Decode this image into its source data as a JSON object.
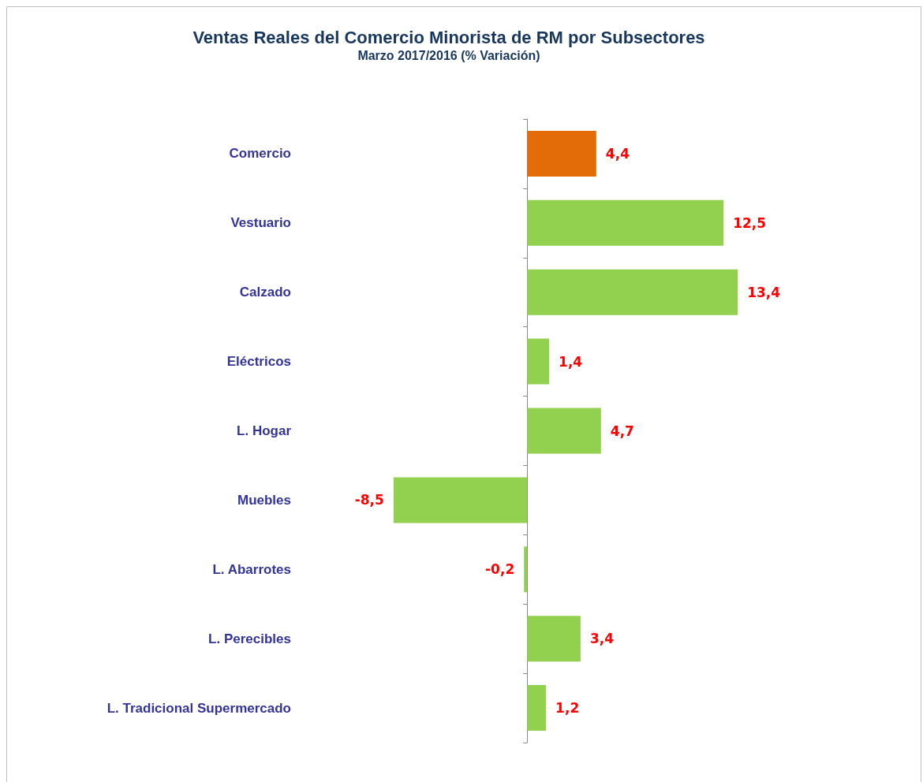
{
  "chart_data": {
    "type": "bar",
    "orientation": "horizontal",
    "title": "Ventas Reales del Comercio Minorista de RM por Subsectores",
    "subtitle": "Marzo 2017/2016 (% Variación)",
    "categories": [
      "Comercio",
      "Vestuario",
      "Calzado",
      "Eléctricos",
      "L. Hogar",
      "Muebles",
      "L. Abarrotes",
      "L. Perecibles",
      "L. Tradicional Supermercado"
    ],
    "values": [
      4.4,
      12.5,
      13.4,
      1.4,
      4.7,
      -8.5,
      -0.2,
      3.4,
      1.2
    ],
    "value_labels": [
      "4,4",
      "12,5",
      "13,4",
      "1,4",
      "4,7",
      "-8,5",
      "-0,2",
      "3,4",
      "1,2"
    ],
    "colors": [
      "#e36c09",
      "#92d050",
      "#92d050",
      "#92d050",
      "#92d050",
      "#92d050",
      "#92d050",
      "#92d050",
      "#92d050"
    ],
    "tick_labels": "y"
  }
}
